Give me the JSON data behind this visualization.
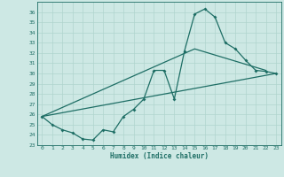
{
  "xlabel": "Humidex (Indice chaleur)",
  "xlim": [
    -0.5,
    23.5
  ],
  "ylim": [
    23,
    37
  ],
  "yticks": [
    23,
    24,
    25,
    26,
    27,
    28,
    29,
    30,
    31,
    32,
    33,
    34,
    35,
    36
  ],
  "xticks": [
    0,
    1,
    2,
    3,
    4,
    5,
    6,
    7,
    8,
    9,
    10,
    11,
    12,
    13,
    14,
    15,
    16,
    17,
    18,
    19,
    20,
    21,
    22,
    23
  ],
  "bg_color": "#cde8e4",
  "grid_color": "#b0d4ce",
  "line_color": "#1e6e65",
  "curve": [
    25.8,
    25.0,
    24.5,
    24.2,
    23.6,
    23.5,
    24.5,
    24.3,
    25.8,
    26.5,
    27.5,
    30.3,
    30.3,
    27.5,
    32.2,
    35.8,
    36.3,
    35.5,
    33.0,
    32.4,
    31.3,
    30.3,
    30.2,
    30.0
  ],
  "line2_x": [
    0,
    15,
    22
  ],
  "line2_y": [
    25.8,
    32.4,
    30.3
  ],
  "line3_x": [
    0,
    23
  ],
  "line3_y": [
    25.8,
    30.0
  ]
}
